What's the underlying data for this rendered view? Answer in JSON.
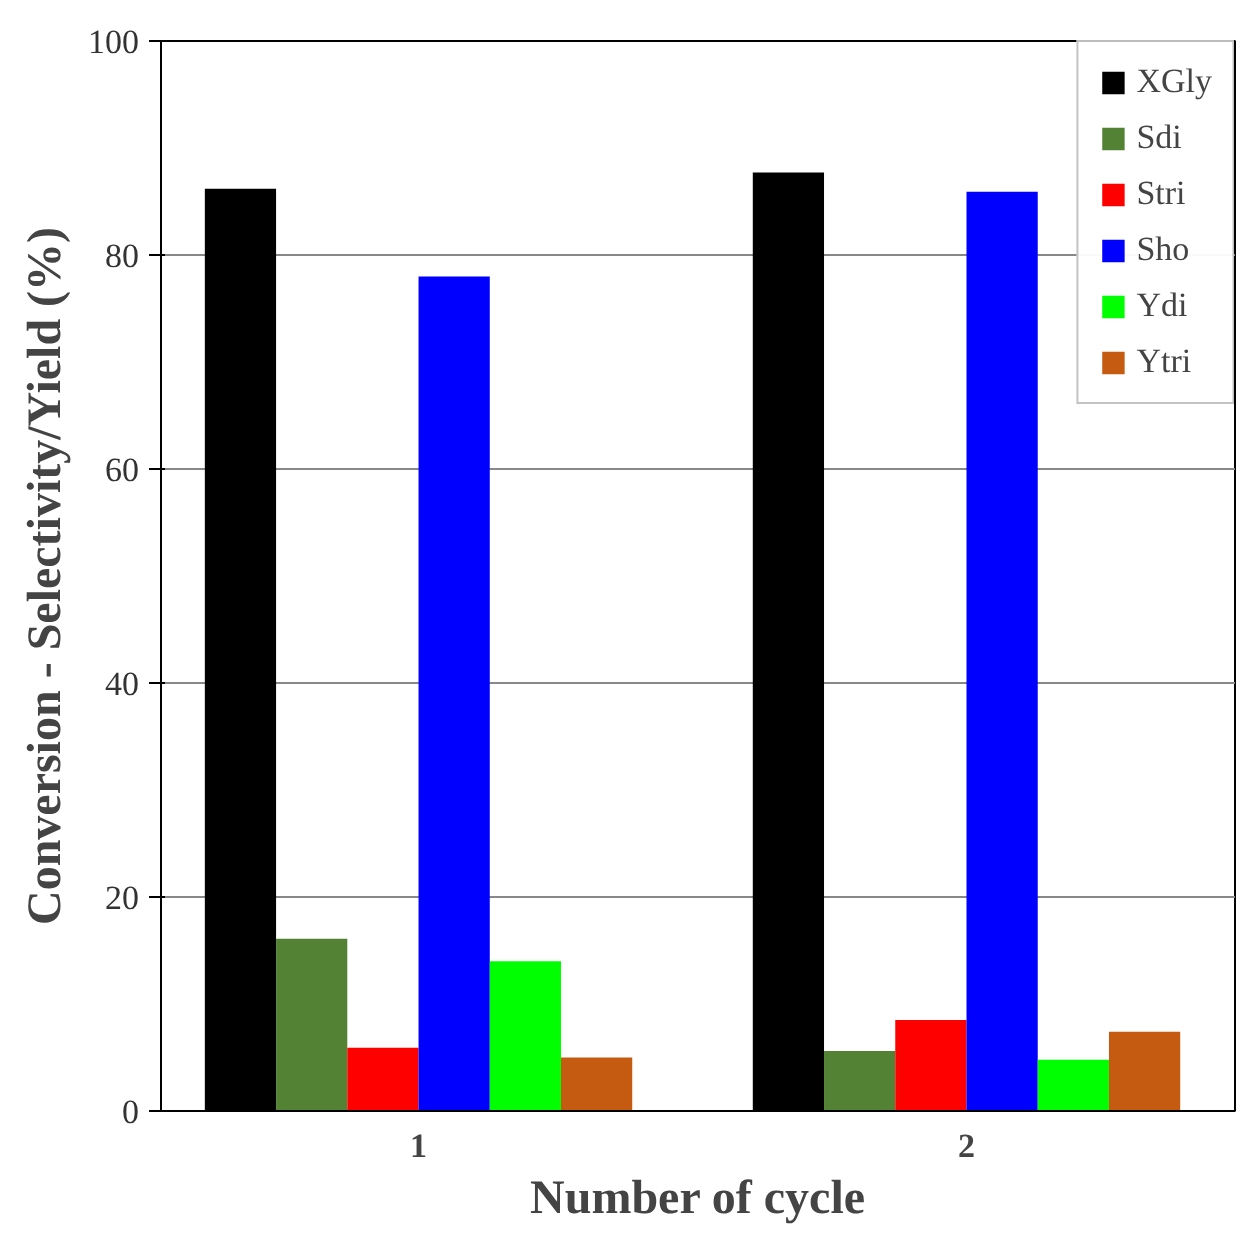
{
  "chart_data": {
    "type": "bar",
    "xlabel": "Number of cycle",
    "ylabel": "Conversion - Selectivity/Yield (%)",
    "categories": [
      "1",
      "2"
    ],
    "series": [
      {
        "name": "XGly",
        "color": "#000000",
        "values": [
          86.2,
          87.7
        ]
      },
      {
        "name": "Sdi",
        "color": "#548235",
        "values": [
          16.1,
          5.6
        ]
      },
      {
        "name": "Stri",
        "color": "#ff0000",
        "values": [
          5.9,
          8.5
        ]
      },
      {
        "name": "Sho",
        "color": "#0000ff",
        "values": [
          78.0,
          85.9
        ]
      },
      {
        "name": "Ydi",
        "color": "#00ff00",
        "values": [
          14.0,
          4.8
        ]
      },
      {
        "name": "Ytri",
        "color": "#c55a11",
        "values": [
          5.0,
          7.4
        ]
      }
    ],
    "ylim": [
      0,
      100
    ],
    "yticks": [
      0,
      20,
      40,
      60,
      80,
      100
    ],
    "grid": "y",
    "legend": "top right"
  }
}
